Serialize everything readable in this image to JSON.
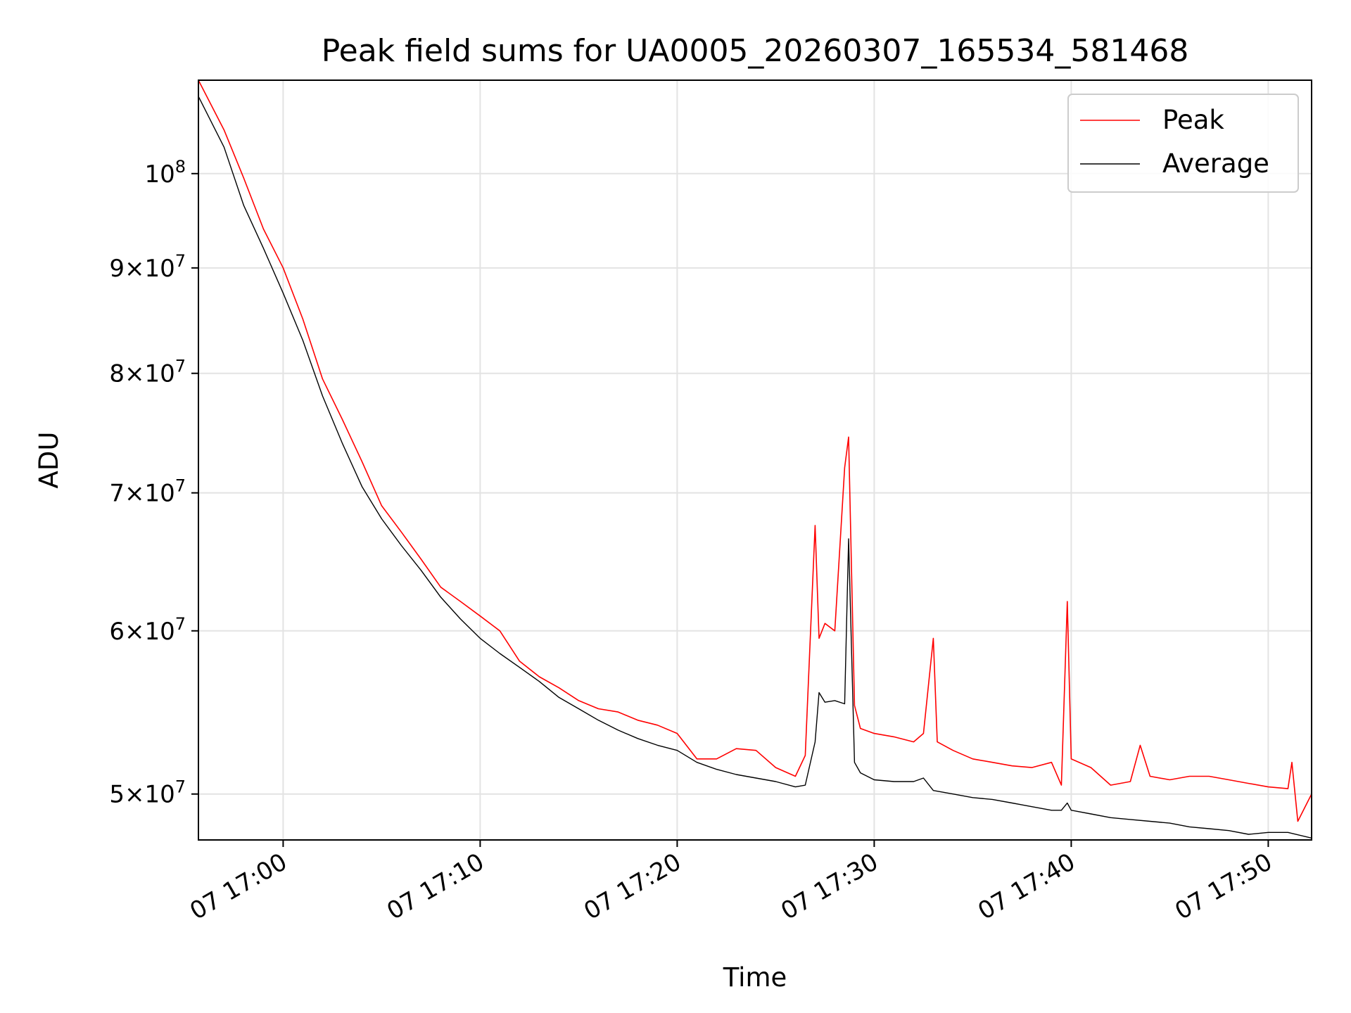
{
  "chart_data": {
    "type": "line",
    "title": "Peak field sums for UA0005_20260307_165534_581468",
    "xlabel": "Time",
    "ylabel": "ADU",
    "yscale": "log",
    "grid": true,
    "legend_position": "top-right",
    "xlim_minutes": [
      -4.3,
      52.2
    ],
    "ylim": [
      47500000,
      111000000
    ],
    "x_ticks": [
      {
        "minute": 0,
        "label": "07 17:00"
      },
      {
        "minute": 10,
        "label": "07 17:10"
      },
      {
        "minute": 20,
        "label": "07 17:20"
      },
      {
        "minute": 30,
        "label": "07 17:30"
      },
      {
        "minute": 40,
        "label": "07 17:40"
      },
      {
        "minute": 50,
        "label": "07 17:50"
      }
    ],
    "y_ticks": [
      {
        "value": 50000000,
        "mant": "5",
        "exp": "7"
      },
      {
        "value": 60000000,
        "mant": "6",
        "exp": "7"
      },
      {
        "value": 70000000,
        "mant": "7",
        "exp": "7"
      },
      {
        "value": 80000000,
        "mant": "8",
        "exp": "7"
      },
      {
        "value": 90000000,
        "mant": "9",
        "exp": "7"
      },
      {
        "value": 100000000,
        "mant": "",
        "exp": "8"
      }
    ],
    "series": [
      {
        "name": "Peak",
        "color": "#ff0000",
        "x": [
          -4.3,
          -3,
          -2,
          -1,
          0,
          1,
          2,
          3,
          4,
          5,
          6,
          7,
          8,
          9,
          10,
          11,
          12,
          13,
          14,
          15,
          16,
          17,
          18,
          19,
          20,
          21,
          22,
          23,
          24,
          25,
          26,
          26.5,
          27,
          27.2,
          27.5,
          28,
          28.5,
          28.7,
          29,
          29.3,
          30,
          31,
          32,
          32.5,
          33,
          33.2,
          34,
          35,
          36,
          37,
          38,
          39,
          39.5,
          39.8,
          40,
          41,
          42,
          43,
          43.5,
          44,
          45,
          46,
          47,
          48,
          49,
          50,
          51,
          51.2,
          51.5,
          52.2
        ],
        "values": [
          111000000,
          105000000,
          99500000,
          94000000,
          90000000,
          85000000,
          79500000,
          76000000,
          72500000,
          69000000,
          67000000,
          65000000,
          63000000,
          62000000,
          61000000,
          60000000,
          58000000,
          57000000,
          56300000,
          55500000,
          55000000,
          54800000,
          54300000,
          54000000,
          53500000,
          52000000,
          52000000,
          52600000,
          52500000,
          51500000,
          51000000,
          52200000,
          67500000,
          59500000,
          60500000,
          60000000,
          72000000,
          74500000,
          55200000,
          53800000,
          53500000,
          53300000,
          53000000,
          53500000,
          59500000,
          53000000,
          52500000,
          52000000,
          51800000,
          51600000,
          51500000,
          51800000,
          50500000,
          62000000,
          52000000,
          51500000,
          50500000,
          50700000,
          52800000,
          51000000,
          50800000,
          51000000,
          51000000,
          50800000,
          50600000,
          50400000,
          50300000,
          51800000,
          48500000,
          50000000
        ]
      },
      {
        "name": "Average",
        "color": "#000000",
        "x": [
          -4.3,
          -3,
          -2,
          -1,
          0,
          1,
          2,
          3,
          4,
          5,
          6,
          7,
          8,
          9,
          10,
          11,
          12,
          13,
          14,
          15,
          16,
          17,
          18,
          19,
          20,
          21,
          22,
          23,
          24,
          25,
          26,
          26.5,
          27,
          27.2,
          27.5,
          28,
          28.5,
          28.7,
          29,
          29.3,
          30,
          31,
          32,
          32.5,
          33,
          34,
          35,
          36,
          37,
          38,
          39,
          39.5,
          39.8,
          40,
          41,
          42,
          43,
          44,
          45,
          46,
          47,
          48,
          49,
          50,
          51,
          52.2
        ],
        "values": [
          109000000,
          103000000,
          96500000,
          92000000,
          87500000,
          83000000,
          78000000,
          74000000,
          70500000,
          68000000,
          66000000,
          64200000,
          62300000,
          60800000,
          59500000,
          58500000,
          57600000,
          56700000,
          55700000,
          55000000,
          54300000,
          53700000,
          53200000,
          52800000,
          52500000,
          51800000,
          51400000,
          51100000,
          50900000,
          50700000,
          50400000,
          50500000,
          53000000,
          56000000,
          55400000,
          55500000,
          55300000,
          66500000,
          51800000,
          51200000,
          50800000,
          50700000,
          50700000,
          50900000,
          50200000,
          50000000,
          49800000,
          49700000,
          49500000,
          49300000,
          49100000,
          49100000,
          49500000,
          49100000,
          48900000,
          48700000,
          48600000,
          48500000,
          48400000,
          48200000,
          48100000,
          48000000,
          47800000,
          47900000,
          47900000,
          47600000
        ]
      }
    ]
  }
}
